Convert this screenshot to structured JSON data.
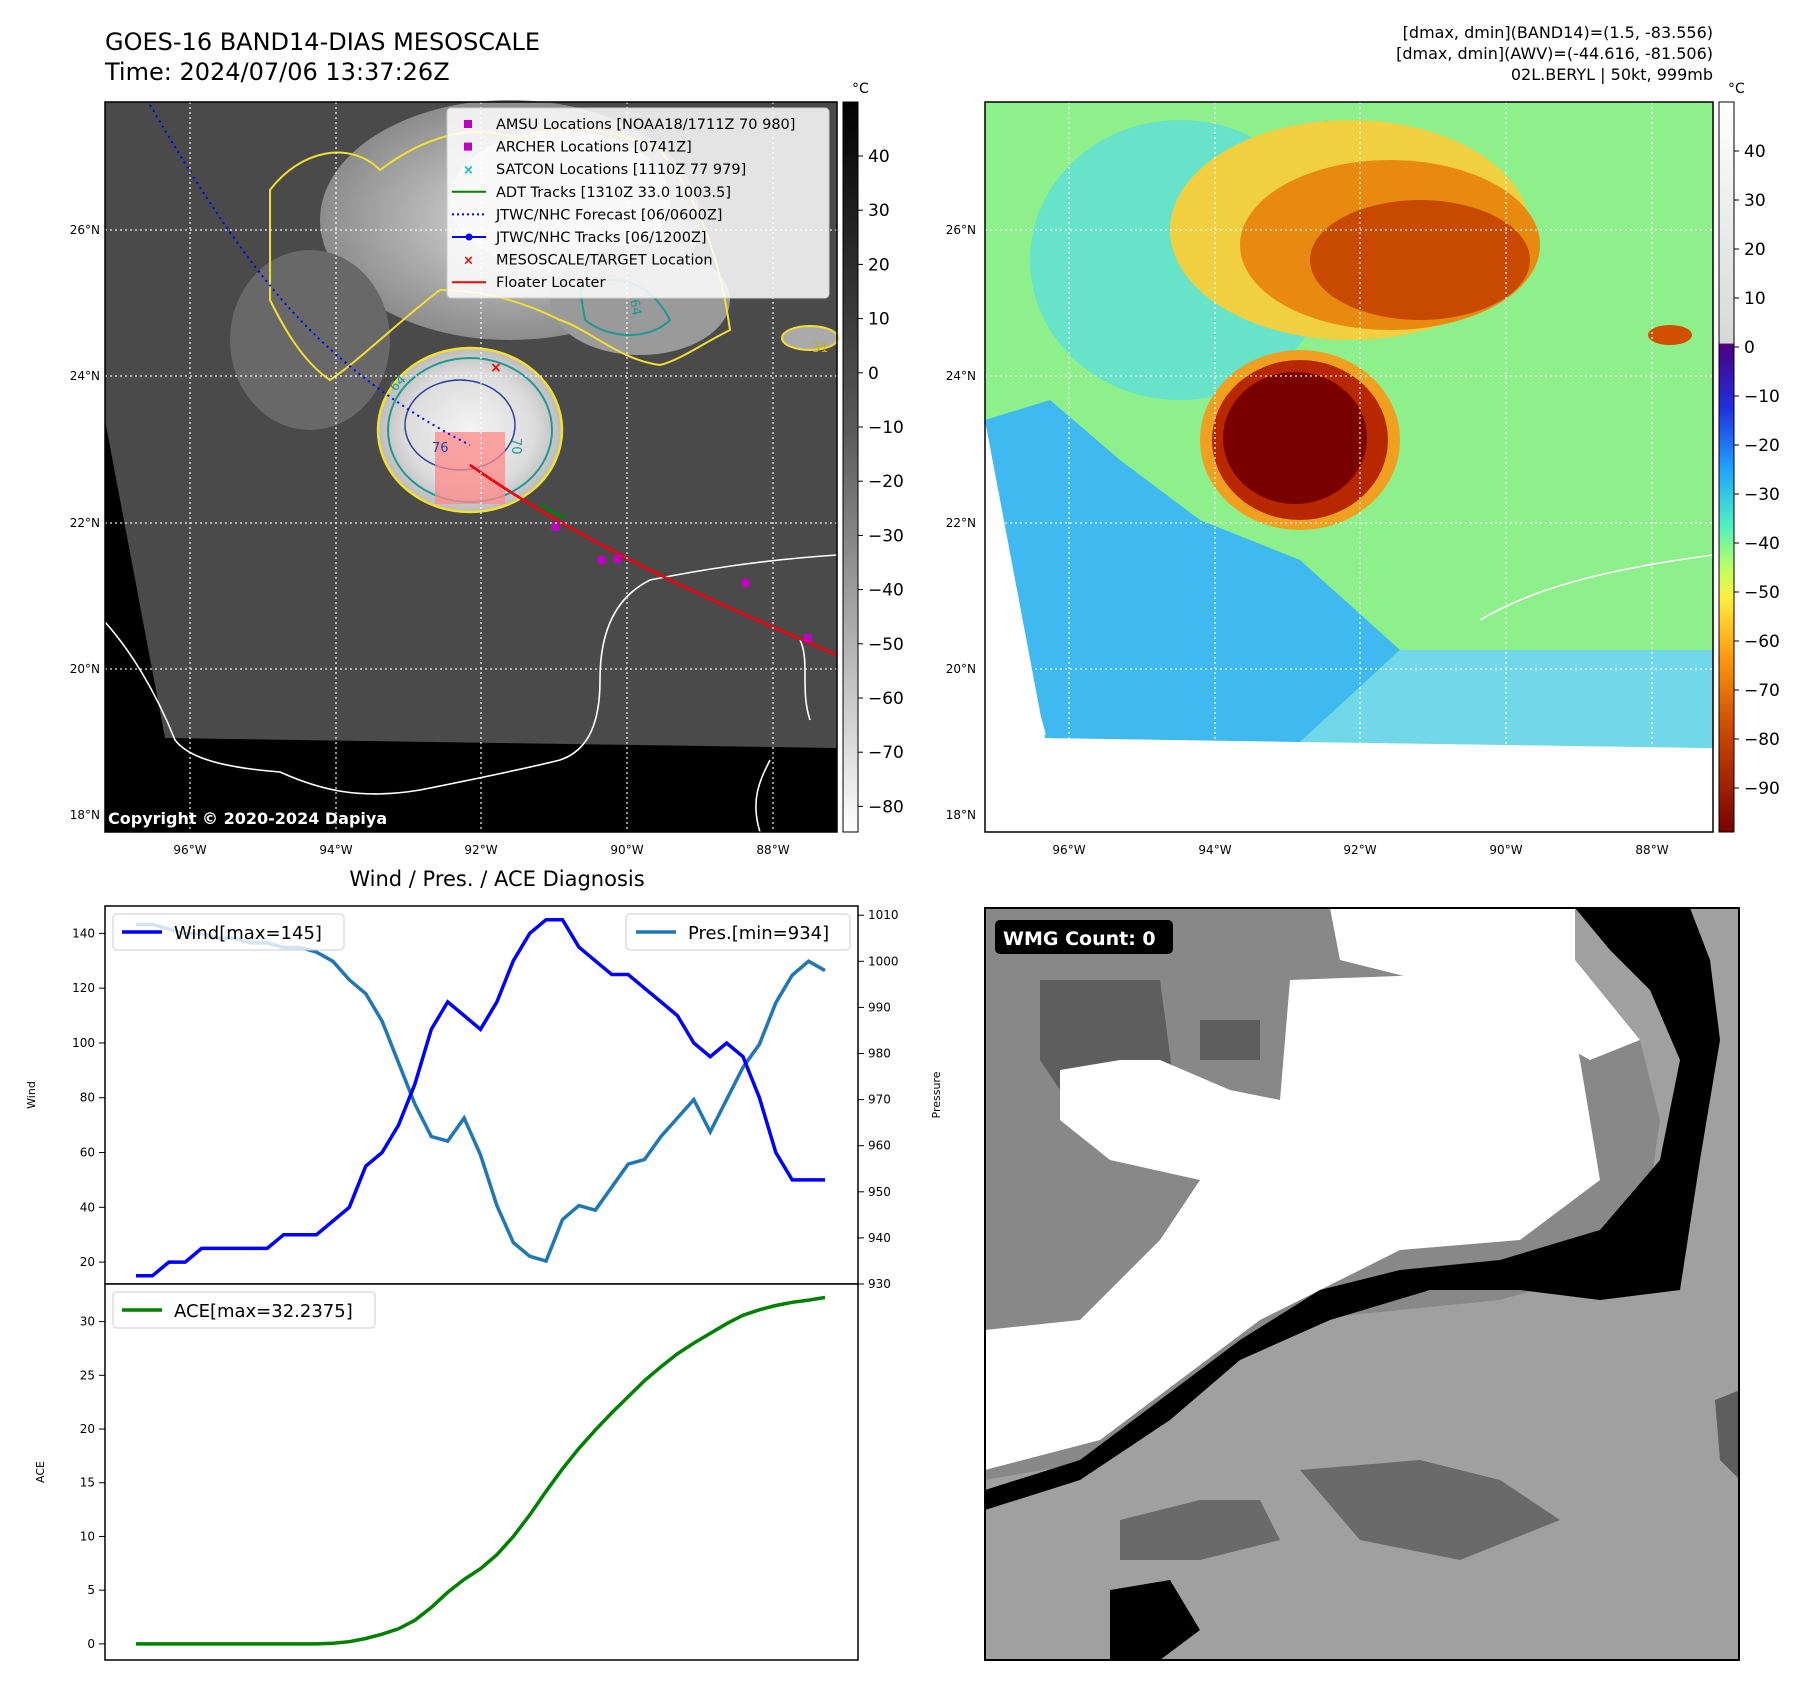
{
  "header": {
    "title_line1": "GOES-16 BAND14-DIAS MESOSCALE",
    "title_line2": "Time: 2024/07/06 13:37:26Z",
    "info_line1": "[dmax, dmin](BAND14)=(1.5, -83.556)",
    "info_line2": "[dmax, dmin](AWV)=(-44.616, -81.506)",
    "info_line3": "02L.BERYL | 50kt, 999mb"
  },
  "map": {
    "lat_labels": [
      "26°N",
      "24°N",
      "22°N",
      "20°N",
      "18°N"
    ],
    "lon_labels": [
      "96°W",
      "94°W",
      "92°W",
      "90°W",
      "88°W"
    ],
    "copyright": "Copyright © 2020-2024 Dapiya",
    "contour_labels": [
      "64",
      "76",
      "64",
      "31",
      "70"
    ],
    "colorbar_gray": {
      "unit": "°C",
      "ticks": [
        "40",
        "30",
        "20",
        "10",
        "0",
        "−10",
        "−20",
        "−30",
        "−40",
        "−50",
        "−60",
        "−70",
        "−80"
      ]
    },
    "colorbar_color": {
      "unit": "°C",
      "ticks": [
        "40",
        "30",
        "20",
        "10",
        "0",
        "−10",
        "−20",
        "−30",
        "−40",
        "−50",
        "−60",
        "−70",
        "−80",
        "−90"
      ]
    },
    "legend": [
      {
        "label": "AMSU Locations [NOAA18/1711Z 70 980]",
        "color": "#c000c0",
        "marker": "square"
      },
      {
        "label": "ARCHER Locations [0741Z]",
        "color": "#c000c0",
        "marker": "square"
      },
      {
        "label": "SATCON Locations [1110Z 77 979]",
        "color": "#00c0c0",
        "marker": "x"
      },
      {
        "label": "ADT Tracks [1310Z 33.0 1003.5]",
        "color": "#008000",
        "marker": "line"
      },
      {
        "label": "JTWC/NHC Forecast [06/0600Z]",
        "color": "#0000ff",
        "marker": "dotted"
      },
      {
        "label": "JTWC/NHC Tracks [06/1200Z]",
        "color": "#0000ff",
        "marker": "line-dot"
      },
      {
        "label": "MESOSCALE/TARGET Location",
        "color": "#ff0000",
        "marker": "x"
      },
      {
        "label": "Floater Locater",
        "color": "#ff0000",
        "marker": "line"
      }
    ]
  },
  "wmg": {
    "label": "WMG Count: 0"
  },
  "chart_data": [
    {
      "type": "line",
      "title": "Wind / Pres. / ACE Diagnosis",
      "ylabel": "Wind",
      "y2label": "Pressure",
      "ylim": [
        12,
        150
      ],
      "y2lim": [
        930,
        1012
      ],
      "series": [
        {
          "name": "Wind[max=145]",
          "axis": "left",
          "color": "#0000ff",
          "values": [
            15,
            15,
            20,
            20,
            25,
            25,
            25,
            25,
            25,
            30,
            30,
            30,
            35,
            40,
            55,
            60,
            70,
            85,
            105,
            115,
            110,
            105,
            115,
            130,
            140,
            145,
            145,
            135,
            130,
            125,
            125,
            120,
            115,
            110,
            100,
            95,
            100,
            95,
            80,
            60,
            50,
            50,
            50
          ]
        },
        {
          "name": "Pres.[min=934]",
          "axis": "right",
          "color": "#1f77b4",
          "values": [
            1008,
            1008,
            1007,
            1006,
            1006,
            1005,
            1005,
            1004,
            1004,
            1003,
            1003,
            1002,
            1000,
            996,
            993,
            987,
            978,
            969,
            962,
            961,
            966,
            958,
            947,
            939,
            936,
            935,
            944,
            947,
            946,
            951,
            956,
            957,
            962,
            966,
            970,
            963,
            970,
            977,
            982,
            991,
            997,
            1000,
            998
          ]
        }
      ]
    },
    {
      "type": "line",
      "ylabel": "ACE",
      "ylim": [
        -1.5,
        33.5
      ],
      "series": [
        {
          "name": "ACE[max=32.2375]",
          "color": "#008000",
          "values": [
            0,
            0,
            0,
            0,
            0,
            0,
            0,
            0,
            0,
            0,
            0,
            0,
            0.05,
            0.2,
            0.5,
            0.9,
            1.4,
            2.2,
            3.4,
            4.8,
            6.0,
            7.0,
            8.3,
            10.0,
            12.0,
            14.2,
            16.3,
            18.2,
            19.9,
            21.5,
            23.0,
            24.5,
            25.8,
            27.0,
            28.0,
            28.9,
            29.8,
            30.6,
            31.1,
            31.5,
            31.8,
            32.0,
            32.24
          ]
        }
      ]
    }
  ]
}
